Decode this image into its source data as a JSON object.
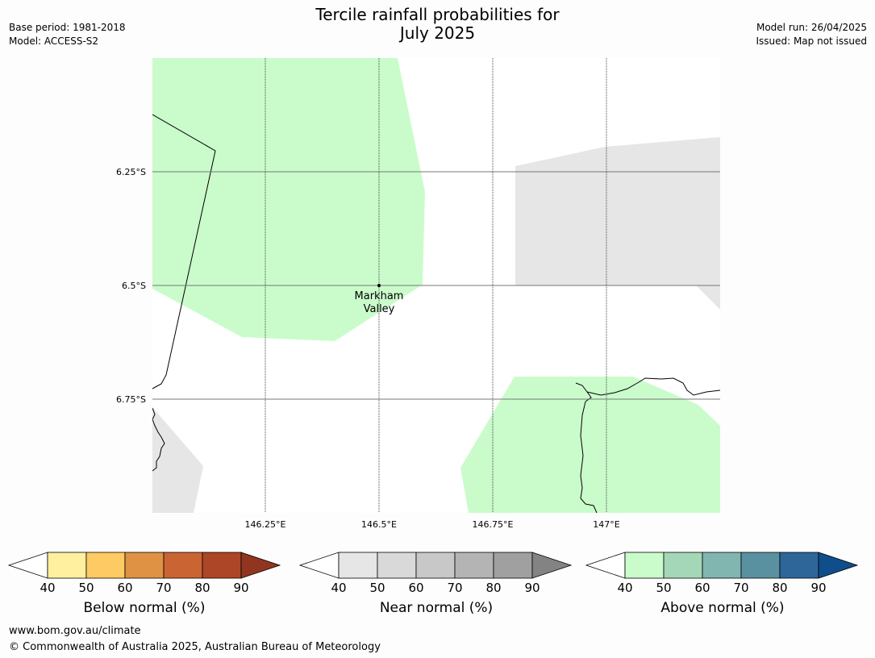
{
  "title": {
    "line1": "Tercile rainfall probabilities for",
    "line2": "July 2025"
  },
  "meta_left": {
    "base_period": "Base period: 1981-2018",
    "model": "Model: ACCESS-S2"
  },
  "meta_right": {
    "model_run": "Model run: 26/04/2025",
    "issued": "Issued: Map not issued"
  },
  "map": {
    "lat_labels": [
      "6.25°S",
      "6.5°S",
      "6.75°S"
    ],
    "lon_labels": [
      "146.25°E",
      "146.5°E",
      "146.75°E",
      "147°E"
    ],
    "place": {
      "name_line1": "Markham",
      "name_line2": "Valley"
    }
  },
  "colorbars": [
    {
      "name": "below",
      "title": "Below normal (%)",
      "ticks": [
        "40",
        "50",
        "60",
        "70",
        "80",
        "90"
      ],
      "colors": [
        "#fff0a0",
        "#fdca63",
        "#e09244",
        "#cb6433",
        "#ad4627"
      ],
      "extend_color": "#923520"
    },
    {
      "name": "near",
      "title": "Near normal (%)",
      "ticks": [
        "40",
        "50",
        "60",
        "70",
        "80",
        "90"
      ],
      "colors": [
        "#e6e6e6",
        "#d9d9d9",
        "#c8c8c8",
        "#b4b4b4",
        "#a0a0a0"
      ],
      "extend_color": "#838383"
    },
    {
      "name": "above",
      "title": "Above normal (%)",
      "ticks": [
        "40",
        "50",
        "60",
        "70",
        "80",
        "90"
      ],
      "colors": [
        "#cafccb",
        "#a4d7b7",
        "#81b5b0",
        "#5a91a0",
        "#2e6699"
      ],
      "extend_color": "#104e8b"
    }
  ],
  "footer": {
    "url": "www.bom.gov.au/climate",
    "copyright": "© Commonwealth of Australia 2025, Australian Bureau of Meteorology"
  },
  "colors": {
    "above_fill": "#cafccb",
    "near_fill": "#e6e6e6",
    "coast": "#000000"
  }
}
